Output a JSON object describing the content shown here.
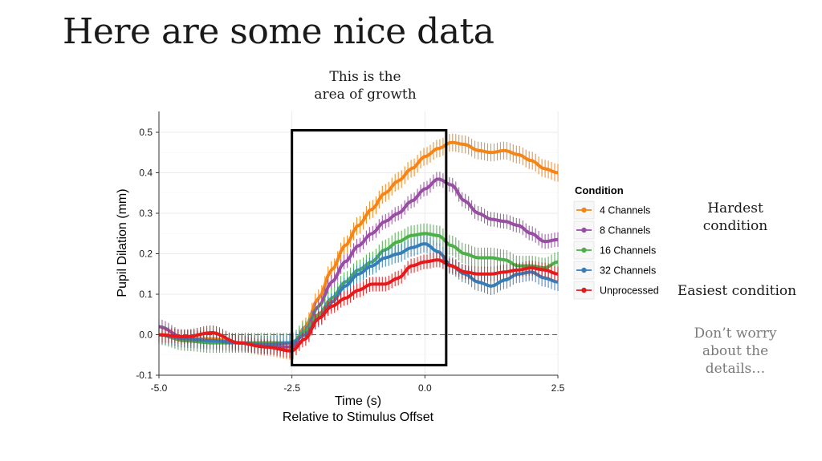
{
  "slide": {
    "title": "Here are some nice data",
    "annotations": {
      "growth_line1": "This is the",
      "growth_line2": "area of growth",
      "hardest_line1": "Hardest",
      "hardest_line2": "condition",
      "easiest": "Easiest condition",
      "worry_line1": "Don’t worry",
      "worry_line2": "about the",
      "worry_line3": "details…"
    }
  },
  "chart_data": {
    "type": "line",
    "xlabel": "Time (s)",
    "xlabel2": "Relative to Stimulus Offset",
    "ylabel": "Pupil Dilation (mm)",
    "xlim": [
      -5.0,
      2.5
    ],
    "ylim": [
      -0.1,
      0.5
    ],
    "xticks": [
      "-5.0",
      "-2.5",
      "0.0",
      "2.5"
    ],
    "xtick_values": [
      -5.0,
      -2.5,
      0.0,
      2.5
    ],
    "yticks": [
      "-0.1",
      "0.0",
      "0.1",
      "0.2",
      "0.3",
      "0.4",
      "0.5"
    ],
    "ytick_values": [
      -0.1,
      0.0,
      0.1,
      0.2,
      0.3,
      0.4,
      0.5
    ],
    "grid": true,
    "reference_line": 0.0,
    "highlight_box": {
      "x": [
        -2.5,
        0.4
      ],
      "y": [
        -0.075,
        0.505
      ]
    },
    "legend_title": "Condition",
    "legend_position": "right",
    "error_bars": true,
    "x": [
      -5.0,
      -4.5,
      -4.0,
      -3.5,
      -3.0,
      -2.5,
      -2.25,
      -2.0,
      -1.75,
      -1.5,
      -1.25,
      -1.0,
      -0.75,
      -0.5,
      -0.25,
      0.0,
      0.25,
      0.5,
      0.75,
      1.0,
      1.25,
      1.5,
      1.75,
      2.0,
      2.25,
      2.5
    ],
    "series": [
      {
        "name": "4 Channels",
        "color": "#f58518",
        "err": 0.022,
        "values": [
          0.0,
          -0.01,
          -0.01,
          -0.02,
          -0.03,
          -0.04,
          0.02,
          0.09,
          0.16,
          0.22,
          0.27,
          0.31,
          0.35,
          0.38,
          0.41,
          0.44,
          0.46,
          0.475,
          0.47,
          0.455,
          0.45,
          0.455,
          0.445,
          0.43,
          0.41,
          0.4
        ]
      },
      {
        "name": "8 Channels",
        "color": "#984ea3",
        "err": 0.018,
        "values": [
          0.02,
          -0.01,
          -0.015,
          -0.02,
          -0.03,
          -0.03,
          0.01,
          0.07,
          0.13,
          0.18,
          0.22,
          0.25,
          0.28,
          0.3,
          0.33,
          0.36,
          0.385,
          0.37,
          0.33,
          0.3,
          0.285,
          0.28,
          0.27,
          0.25,
          0.23,
          0.235
        ]
      },
      {
        "name": "16 Channels",
        "color": "#4daf4a",
        "err": 0.025,
        "values": [
          0.0,
          -0.015,
          -0.02,
          -0.02,
          -0.02,
          -0.02,
          0.01,
          0.05,
          0.09,
          0.13,
          0.16,
          0.18,
          0.21,
          0.23,
          0.245,
          0.25,
          0.245,
          0.22,
          0.2,
          0.19,
          0.19,
          0.185,
          0.17,
          0.17,
          0.165,
          0.18
        ]
      },
      {
        "name": "32 Channels",
        "color": "#377eb8",
        "err": 0.022,
        "values": [
          0.0,
          -0.01,
          -0.015,
          -0.02,
          -0.025,
          -0.02,
          0.0,
          0.04,
          0.08,
          0.12,
          0.15,
          0.17,
          0.19,
          0.2,
          0.215,
          0.225,
          0.205,
          0.17,
          0.15,
          0.13,
          0.12,
          0.135,
          0.15,
          0.155,
          0.14,
          0.13
        ]
      },
      {
        "name": "Unprocessed",
        "color": "#e41a1c",
        "err": 0.018,
        "values": [
          0.0,
          -0.005,
          0.005,
          -0.02,
          -0.03,
          -0.04,
          -0.01,
          0.04,
          0.07,
          0.09,
          0.11,
          0.125,
          0.125,
          0.14,
          0.17,
          0.18,
          0.185,
          0.17,
          0.155,
          0.15,
          0.15,
          0.155,
          0.16,
          0.165,
          0.16,
          0.15
        ]
      }
    ]
  }
}
